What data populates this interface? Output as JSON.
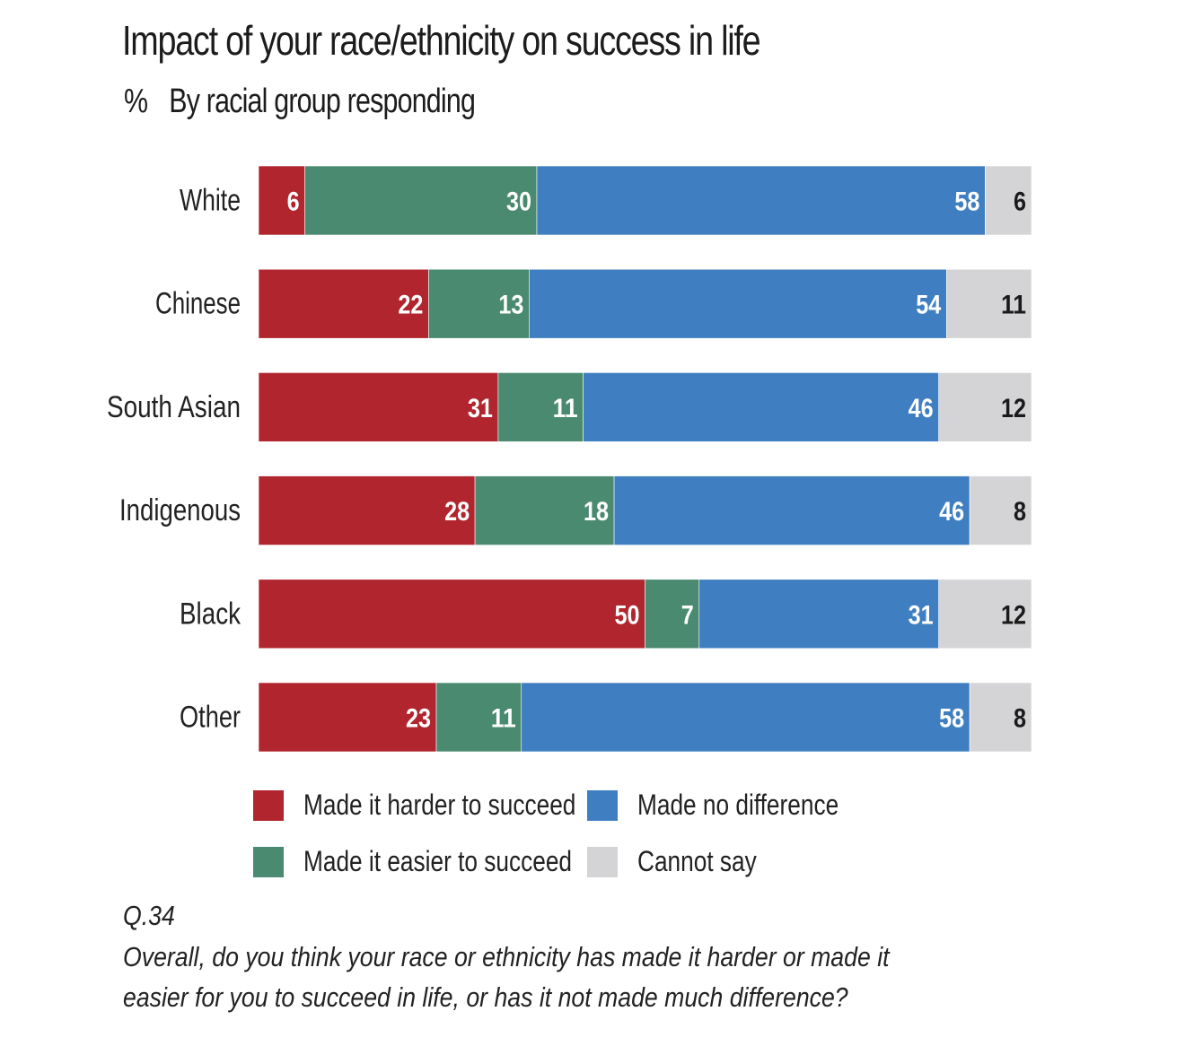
{
  "chart_data": {
    "type": "bar",
    "orientation": "horizontal",
    "stacked": true,
    "title": "Impact of your race/ethnicity on success in life",
    "subtitle_unit": "%",
    "subtitle": "By racial group responding",
    "xlabel": "",
    "ylabel": "",
    "xlim": [
      0,
      100
    ],
    "grid": false,
    "legend_position": "bottom",
    "categories": [
      "White",
      "Chinese",
      "South Asian",
      "Indigenous",
      "Black",
      "Other"
    ],
    "series": [
      {
        "name": "Made it harder to succeed",
        "color": "#b0252e",
        "label_color": "#ffffff",
        "values": [
          6,
          22,
          31,
          28,
          50,
          23
        ]
      },
      {
        "name": "Made it easier to succeed",
        "color": "#4a8a70",
        "label_color": "#ffffff",
        "values": [
          30,
          13,
          11,
          18,
          7,
          11
        ]
      },
      {
        "name": "Made no difference",
        "color": "#3f7fc1",
        "label_color": "#ffffff",
        "values": [
          58,
          54,
          46,
          46,
          31,
          58
        ]
      },
      {
        "name": "Cannot say",
        "color": "#d4d4d6",
        "label_color": "#1a1a1a",
        "values": [
          6,
          11,
          12,
          8,
          12,
          8
        ]
      }
    ]
  },
  "legend": [
    {
      "label": "Made it harder to succeed",
      "color": "#b0252e"
    },
    {
      "label": "Made no difference",
      "color": "#3f7fc1"
    },
    {
      "label": "Made it easier to succeed",
      "color": "#4a8a70"
    },
    {
      "label": "Cannot say",
      "color": "#d4d4d6"
    }
  ],
  "footnote": {
    "question_id": "Q.34",
    "question_line1": "Overall, do you think your race or ethnicity has made it harder or made it",
    "question_line2": "easier for you to succeed in life, or has it not made much difference?"
  }
}
